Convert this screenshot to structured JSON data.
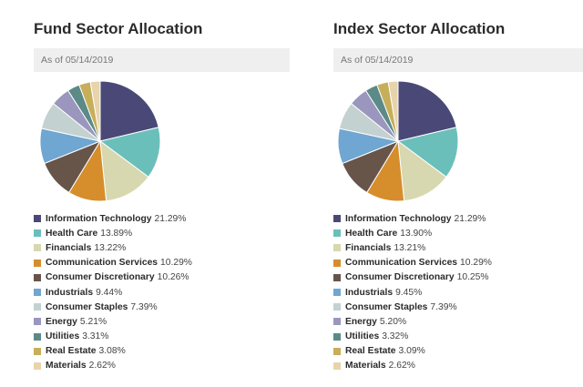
{
  "chart_data": [
    {
      "type": "pie",
      "title": "Fund Sector Allocation",
      "subtitle": "As of 05/14/2019",
      "unit": "%",
      "legend_position": "bottom",
      "categories": [
        "Information Technology",
        "Health Care",
        "Financials",
        "Communication Services",
        "Consumer Discretionary",
        "Industrials",
        "Consumer Staples",
        "Energy",
        "Utilities",
        "Real Estate",
        "Materials"
      ],
      "values": [
        21.29,
        13.89,
        13.22,
        10.29,
        10.26,
        9.44,
        7.39,
        5.21,
        3.31,
        3.08,
        2.62
      ],
      "labels": [
        "21.29%",
        "13.89%",
        "13.22%",
        "10.29%",
        "10.26%",
        "9.44%",
        "7.39%",
        "5.21%",
        "3.31%",
        "3.08%",
        "2.62%"
      ]
    },
    {
      "type": "pie",
      "title": "Index Sector Allocation",
      "subtitle": "As of 05/14/2019",
      "unit": "%",
      "legend_position": "bottom",
      "categories": [
        "Information Technology",
        "Health Care",
        "Financials",
        "Communication Services",
        "Consumer Discretionary",
        "Industrials",
        "Consumer Staples",
        "Energy",
        "Utilities",
        "Real Estate",
        "Materials"
      ],
      "values": [
        21.29,
        13.9,
        13.21,
        10.29,
        10.25,
        9.45,
        7.39,
        5.2,
        3.32,
        3.09,
        2.62
      ],
      "labels": [
        "21.29%",
        "13.90%",
        "13.21%",
        "10.29%",
        "10.25%",
        "9.45%",
        "7.39%",
        "5.20%",
        "3.32%",
        "3.09%",
        "2.62%"
      ]
    }
  ],
  "colors": [
    "#4a4876",
    "#6bbfbb",
    "#d8d8b0",
    "#d68d2c",
    "#67554a",
    "#6fa6d2",
    "#c4d1d1",
    "#9a96be",
    "#5c8a86",
    "#c7ae5a",
    "#e8d4ac"
  ]
}
